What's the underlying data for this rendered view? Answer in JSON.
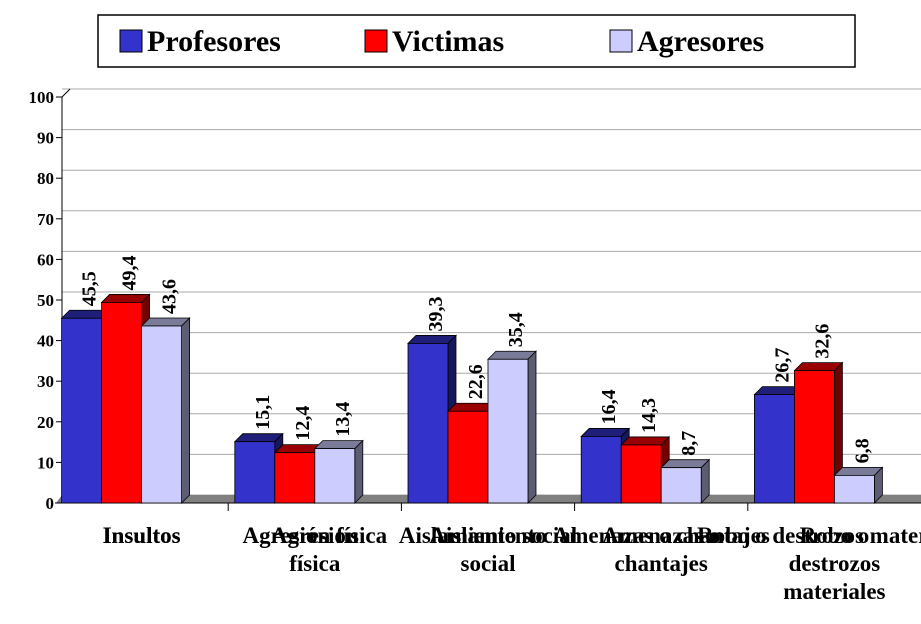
{
  "chart_data": {
    "type": "bar",
    "categories": [
      "Insultos",
      "Agresión\nfísica",
      "Aislamiento\nsocial",
      "Amenazas o\nchantajes",
      "Robo o\ndestrozos\nmateriales"
    ],
    "series": [
      {
        "name": "Profesores",
        "color": "#3333cc",
        "values": [
          45.5,
          15.1,
          39.3,
          16.4,
          26.7
        ],
        "value_labels": [
          "45,5",
          "15,1",
          "39,3",
          "16,4",
          "26,7"
        ]
      },
      {
        "name": "Victimas",
        "color": "#ff0000",
        "values": [
          49.4,
          12.4,
          22.6,
          14.3,
          32.6
        ],
        "value_labels": [
          "49,4",
          "12,4",
          "22,6",
          "14,3",
          "32,6"
        ]
      },
      {
        "name": "Agresores",
        "color": "#ccccff",
        "values": [
          43.6,
          13.4,
          35.4,
          8.7,
          6.8
        ],
        "value_labels": [
          "43,6",
          "13,4",
          "35,4",
          "8,7",
          "6,8"
        ]
      }
    ],
    "ylim": [
      0,
      100
    ],
    "yticks": [
      0,
      10,
      20,
      30,
      40,
      50,
      60,
      70,
      80,
      90,
      100
    ],
    "grid": true,
    "legend": "top"
  }
}
